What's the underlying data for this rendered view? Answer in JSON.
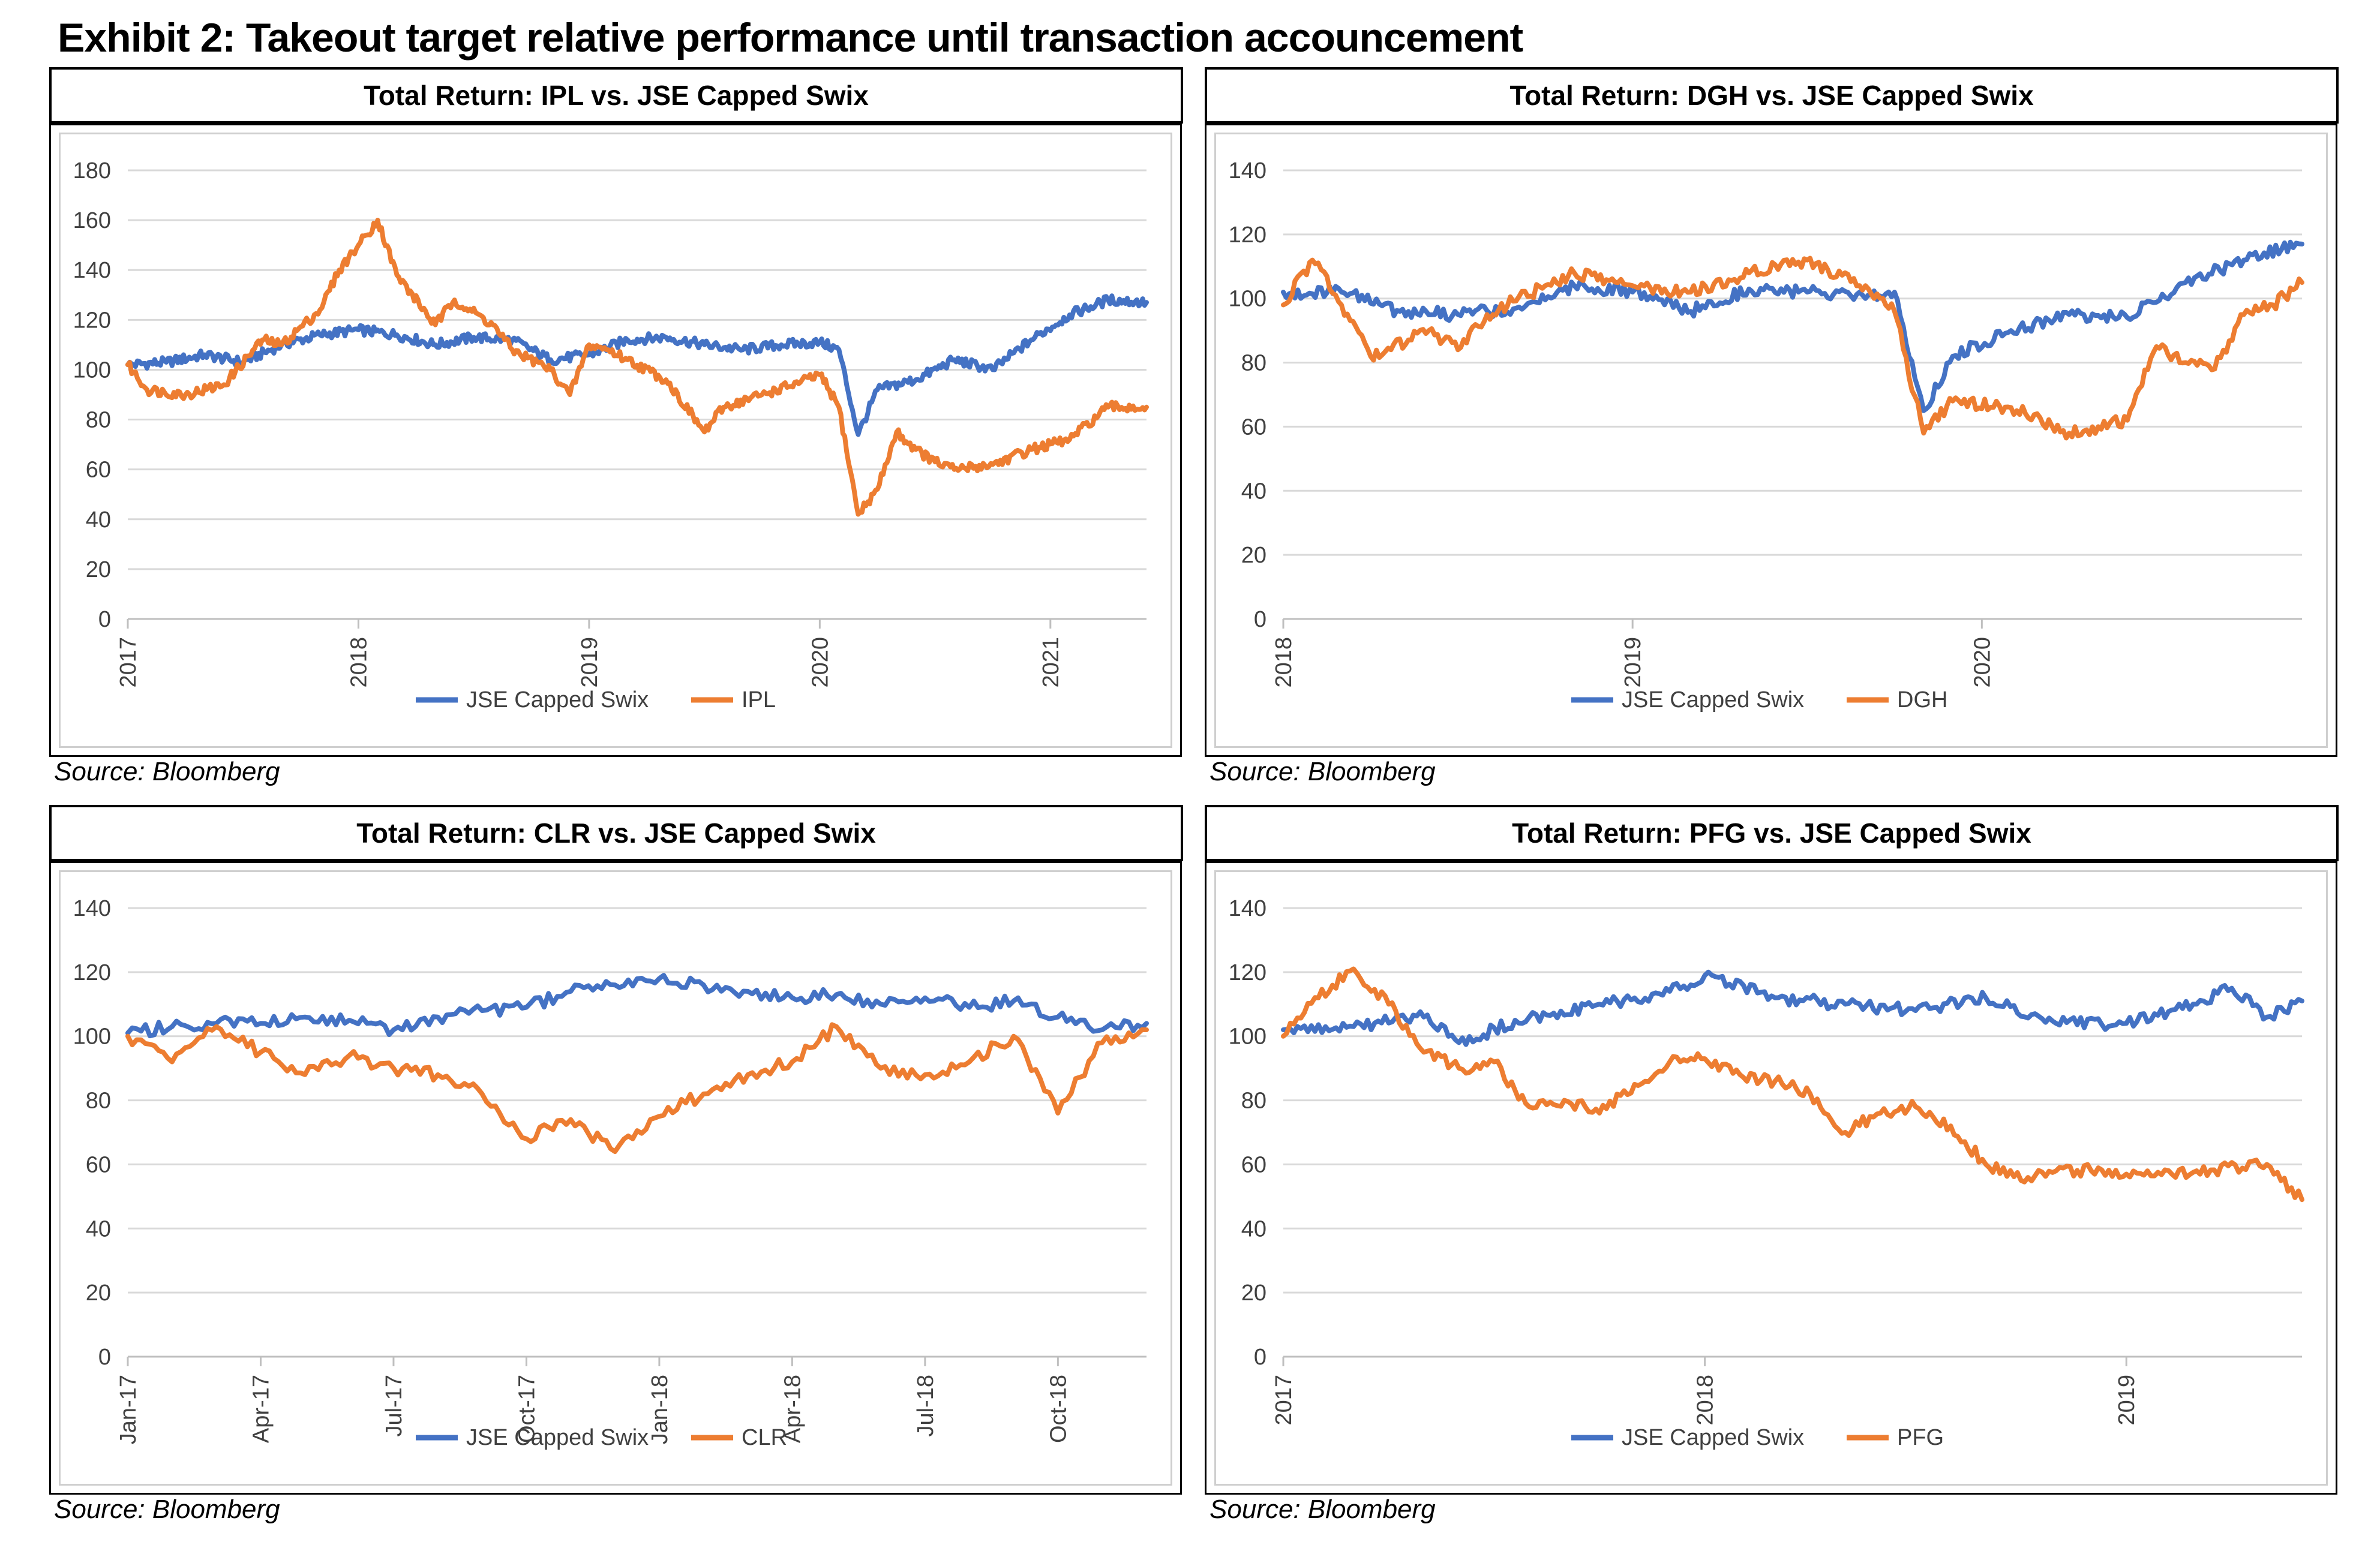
{
  "exhibit_title": "Exhibit 2: Takeout target relative performance until transaction accouncement",
  "chart_data": [
    {
      "type": "line",
      "title": "Total Return: IPL vs. JSE Capped Swix",
      "source": "Source: Bloomberg",
      "xlabel": "",
      "ylabel": "",
      "ylim": [
        0,
        180
      ],
      "yticks": [
        "0",
        "20",
        "40",
        "60",
        "80",
        "100",
        "120",
        "140",
        "160",
        "180"
      ],
      "xlim": [
        "2017-01",
        "2021-06"
      ],
      "xticks": [
        "2017",
        "2018",
        "2019",
        "2020",
        "2021"
      ],
      "grid": "horizontal",
      "legend_position": "bottom",
      "colors": {
        "JSE Capped Swix": "#4472C4",
        "IPL": "#ED7D31"
      },
      "series": [
        {
          "name": "JSE Capped Swix",
          "color": "#4472C4",
          "x": [
            "2017-01",
            "2017-03",
            "2017-05",
            "2017-07",
            "2017-09",
            "2017-11",
            "2018-01",
            "2018-03",
            "2018-05",
            "2018-07",
            "2018-09",
            "2018-11",
            "2019-01",
            "2019-03",
            "2019-05",
            "2019-07",
            "2019-09",
            "2019-11",
            "2020-01",
            "2020-02",
            "2020-03",
            "2020-04",
            "2020-06",
            "2020-08",
            "2020-10",
            "2020-12",
            "2021-02",
            "2021-04",
            "2021-06"
          ],
          "y": [
            102,
            103,
            106,
            103,
            110,
            114,
            116,
            114,
            110,
            113,
            112,
            104,
            106,
            112,
            113,
            110,
            108,
            110,
            111,
            108,
            74,
            92,
            96,
            104,
            100,
            112,
            122,
            128,
            127
          ]
        },
        {
          "name": "IPL",
          "color": "#ED7D31",
          "x": [
            "2017-01",
            "2017-02",
            "2017-04",
            "2017-06",
            "2017-08",
            "2017-09",
            "2017-11",
            "2017-12",
            "2018-01",
            "2018-02",
            "2018-03",
            "2018-05",
            "2018-06",
            "2018-08",
            "2018-09",
            "2018-11",
            "2018-12",
            "2019-01",
            "2019-02",
            "2019-03",
            "2019-05",
            "2019-07",
            "2019-08",
            "2019-10",
            "2019-12",
            "2020-01",
            "2020-02",
            "2020-03",
            "2020-04",
            "2020-05",
            "2020-06",
            "2020-07",
            "2020-08",
            "2020-10",
            "2020-12",
            "2021-02",
            "2021-04",
            "2021-06"
          ],
          "y": [
            102,
            92,
            90,
            94,
            112,
            110,
            124,
            140,
            150,
            160,
            138,
            118,
            128,
            118,
            108,
            100,
            90,
            110,
            108,
            104,
            96,
            75,
            85,
            90,
            95,
            98,
            85,
            42,
            52,
            75,
            68,
            63,
            60,
            62,
            68,
            72,
            85,
            85
          ]
        }
      ]
    },
    {
      "type": "line",
      "title": "Total Return: DGH vs. JSE Capped Swix",
      "source": "Source: Bloomberg",
      "xlabel": "",
      "ylabel": "",
      "ylim": [
        0,
        140
      ],
      "yticks": [
        "0",
        "20",
        "40",
        "60",
        "80",
        "100",
        "120",
        "140"
      ],
      "xlim": [
        "2018-01",
        "2020-12"
      ],
      "xticks": [
        "2018",
        "2019",
        "2020"
      ],
      "grid": "horizontal",
      "legend_position": "bottom",
      "colors": {
        "JSE Capped Swix": "#4472C4",
        "DGH": "#ED7D31"
      },
      "series": [
        {
          "name": "JSE Capped Swix",
          "color": "#4472C4",
          "x": [
            "2018-01",
            "2018-03",
            "2018-05",
            "2018-07",
            "2018-09",
            "2018-11",
            "2019-01",
            "2019-03",
            "2019-05",
            "2019-07",
            "2019-09",
            "2019-10",
            "2019-11",
            "2019-12",
            "2020-02",
            "2020-04",
            "2020-06",
            "2020-08",
            "2020-10",
            "2020-12"
          ],
          "y": [
            102,
            102,
            96,
            95,
            97,
            104,
            102,
            96,
            103,
            102,
            100,
            102,
            65,
            82,
            90,
            95,
            94,
            105,
            112,
            117
          ]
        },
        {
          "name": "DGH",
          "color": "#ED7D31",
          "x": [
            "2018-01",
            "2018-02",
            "2018-03",
            "2018-04",
            "2018-06",
            "2018-07",
            "2018-08",
            "2018-10",
            "2018-11",
            "2019-01",
            "2019-03",
            "2019-05",
            "2019-07",
            "2019-09",
            "2019-10",
            "2019-11",
            "2019-12",
            "2020-02",
            "2020-04",
            "2020-05",
            "2020-06",
            "2020-07",
            "2020-08",
            "2020-09",
            "2020-10",
            "2020-11",
            "2020-12"
          ],
          "y": [
            98,
            112,
            98,
            82,
            90,
            84,
            95,
            104,
            108,
            104,
            102,
            108,
            112,
            104,
            96,
            58,
            68,
            66,
            58,
            60,
            62,
            85,
            80,
            78,
            95,
            98,
            105
          ]
        }
      ]
    },
    {
      "type": "line",
      "title": "Total Return: CLR vs. JSE Capped Swix",
      "source": "Source: Bloomberg",
      "xlabel": "",
      "ylabel": "",
      "ylim": [
        0,
        140
      ],
      "yticks": [
        "0",
        "20",
        "40",
        "60",
        "80",
        "100",
        "120",
        "140"
      ],
      "xlim": [
        "2017-01",
        "2018-12"
      ],
      "xticks": [
        "Jan-17",
        "Apr-17",
        "Jul-17",
        "Oct-17",
        "Jan-18",
        "Apr-18",
        "Jul-18",
        "Oct-18"
      ],
      "grid": "horizontal",
      "legend_position": "bottom",
      "colors": {
        "JSE Capped Swix": "#4472C4",
        "CLR": "#ED7D31"
      },
      "series": [
        {
          "name": "JSE Capped Swix",
          "color": "#4472C4",
          "x": [
            "2017-01",
            "2017-02",
            "2017-03",
            "2017-04",
            "2017-05",
            "2017-06",
            "2017-07",
            "2017-08",
            "2017-09",
            "2017-10",
            "2017-11",
            "2017-12",
            "2018-01",
            "2018-02",
            "2018-03",
            "2018-04",
            "2018-05",
            "2018-06",
            "2018-07",
            "2018-08",
            "2018-09",
            "2018-10",
            "2018-11",
            "2018-12"
          ],
          "y": [
            101,
            103,
            104,
            104,
            106,
            105,
            102,
            106,
            108,
            109,
            114,
            116,
            118,
            116,
            114,
            112,
            113,
            110,
            112,
            109,
            111,
            106,
            102,
            104
          ]
        },
        {
          "name": "CLR",
          "color": "#ED7D31",
          "x": [
            "2017-01",
            "2017-02",
            "2017-03",
            "2017-04",
            "2017-05",
            "2017-06",
            "2017-07",
            "2017-08",
            "2017-09",
            "2017-10",
            "2017-11",
            "2017-12",
            "2018-01",
            "2018-02",
            "2018-03",
            "2018-04",
            "2018-05",
            "2018-06",
            "2018-07",
            "2018-08",
            "2018-09",
            "2018-10",
            "2018-11",
            "2018-12"
          ],
          "y": [
            100,
            92,
            103,
            95,
            88,
            94,
            90,
            88,
            82,
            68,
            74,
            64,
            75,
            82,
            88,
            92,
            103,
            90,
            88,
            92,
            100,
            76,
            98,
            102
          ]
        }
      ]
    },
    {
      "type": "line",
      "title": "Total Return: PFG vs. JSE Capped Swix",
      "source": "Source: Bloomberg",
      "xlabel": "",
      "ylabel": "",
      "ylim": [
        0,
        140
      ],
      "yticks": [
        "0",
        "20",
        "40",
        "60",
        "80",
        "100",
        "120",
        "140"
      ],
      "xlim": [
        "2017-01",
        "2019-06"
      ],
      "xticks": [
        "2017",
        "2018",
        "2019"
      ],
      "grid": "horizontal",
      "legend_position": "bottom",
      "colors": {
        "JSE Capped Swix": "#4472C4",
        "PFG": "#ED7D31"
      },
      "series": [
        {
          "name": "JSE Capped Swix",
          "color": "#4472C4",
          "x": [
            "2017-01",
            "2017-03",
            "2017-05",
            "2017-06",
            "2017-08",
            "2017-10",
            "2017-12",
            "2018-01",
            "2018-03",
            "2018-05",
            "2018-07",
            "2018-09",
            "2018-11",
            "2019-01",
            "2019-03",
            "2019-04",
            "2019-05",
            "2019-06"
          ],
          "y": [
            102,
            103,
            106,
            98,
            106,
            110,
            114,
            119,
            112,
            110,
            108,
            112,
            104,
            104,
            110,
            115,
            106,
            111
          ]
        },
        {
          "name": "PFG",
          "color": "#ED7D31",
          "x": [
            "2017-01",
            "2017-02",
            "2017-03",
            "2017-04",
            "2017-05",
            "2017-06",
            "2017-07",
            "2017-08",
            "2017-09",
            "2017-10",
            "2017-11",
            "2017-12",
            "2018-01",
            "2018-02",
            "2018-03",
            "2018-04",
            "2018-05",
            "2018-06",
            "2018-07",
            "2018-08",
            "2018-09",
            "2018-10",
            "2018-11",
            "2018-12",
            "2019-01",
            "2019-03",
            "2019-05",
            "2019-06"
          ],
          "y": [
            100,
            112,
            121,
            110,
            95,
            90,
            92,
            78,
            80,
            76,
            85,
            92,
            93,
            88,
            86,
            82,
            70,
            76,
            78,
            72,
            60,
            55,
            58,
            58,
            57,
            58,
            60,
            49
          ]
        }
      ]
    }
  ]
}
